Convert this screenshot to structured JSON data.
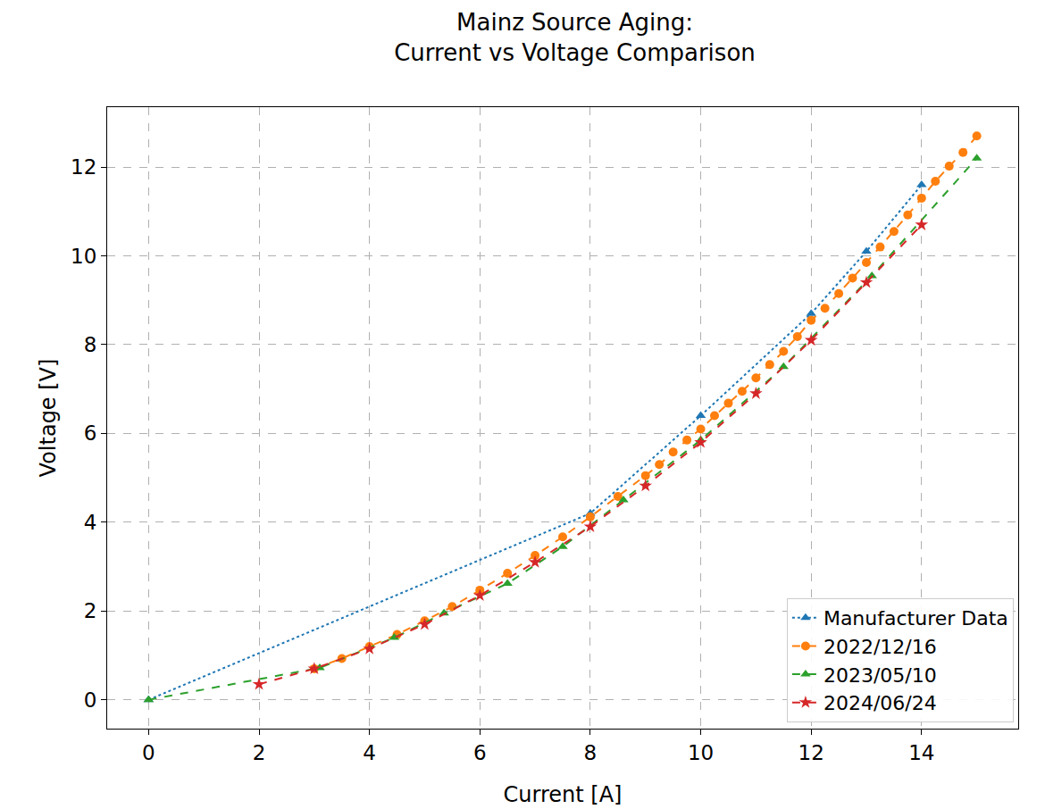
{
  "chart_data": {
    "type": "line",
    "title": "Mainz Source Aging:\nCurrent vs Voltage Comparison",
    "x_label": "Current [A]",
    "y_label": "Voltage [V]",
    "xlim": [
      -0.75,
      15.75
    ],
    "ylim": [
      -0.65,
      13.35
    ],
    "xticks": [
      0,
      2,
      4,
      6,
      8,
      10,
      12,
      14
    ],
    "yticks": [
      0,
      2,
      4,
      6,
      8,
      10,
      12
    ],
    "grid": true,
    "legend": "lower right",
    "series": [
      {
        "name": "Manufacturer Data",
        "color": "#1f77b4",
        "marker": "triangle",
        "line_style": "dotted",
        "x": [
          0,
          8,
          10,
          12,
          13,
          14
        ],
        "values": [
          0,
          4.2,
          6.4,
          8.7,
          10.1,
          11.6
        ]
      },
      {
        "name": "2022/12/16",
        "color": "#ff7f0e",
        "marker": "circle",
        "line_style": "dashed",
        "x": [
          3,
          3.5,
          4,
          4.5,
          5,
          5.5,
          6,
          6.5,
          7,
          7.5,
          8,
          8.5,
          9,
          9.25,
          9.5,
          9.75,
          10,
          10.25,
          10.5,
          10.75,
          11,
          11.25,
          11.5,
          11.75,
          12,
          12.25,
          12.5,
          12.75,
          13,
          13.25,
          13.5,
          13.75,
          14,
          14.25,
          14.5,
          14.75,
          15
        ],
        "values": [
          0.7,
          0.93,
          1.2,
          1.47,
          1.78,
          2.1,
          2.47,
          2.85,
          3.25,
          3.67,
          4.12,
          4.58,
          5.05,
          5.3,
          5.58,
          5.85,
          6.1,
          6.4,
          6.68,
          6.95,
          7.25,
          7.55,
          7.85,
          8.18,
          8.55,
          8.82,
          9.15,
          9.5,
          9.85,
          10.2,
          10.55,
          10.92,
          11.3,
          11.68,
          12.02,
          12.33,
          12.7
        ]
      },
      {
        "name": "2023/05/10",
        "color": "#2ca02c",
        "marker": "triangle",
        "line_style": "dashed",
        "x": [
          0,
          3.1,
          4.45,
          5.35,
          6.5,
          7.5,
          8.6,
          10,
          11.5,
          13.1,
          15
        ],
        "values": [
          0,
          0.72,
          1.4,
          1.95,
          2.62,
          3.45,
          4.5,
          5.85,
          7.5,
          9.55,
          12.2
        ]
      },
      {
        "name": "2024/06/24",
        "color": "#d62728",
        "marker": "star",
        "line_style": "dashed",
        "x": [
          2,
          3,
          4,
          5,
          6,
          7,
          8,
          9,
          10,
          11,
          12,
          13,
          14
        ],
        "values": [
          0.35,
          0.7,
          1.15,
          1.7,
          2.35,
          3.1,
          3.9,
          4.82,
          5.8,
          6.9,
          8.1,
          9.4,
          10.7
        ]
      }
    ]
  }
}
